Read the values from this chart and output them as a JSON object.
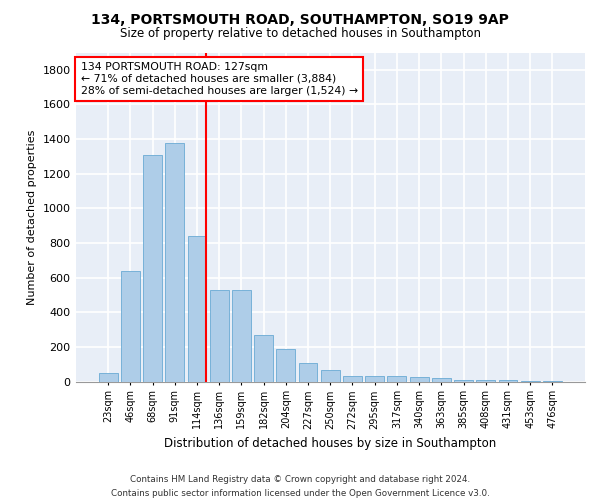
{
  "title1": "134, PORTSMOUTH ROAD, SOUTHAMPTON, SO19 9AP",
  "title2": "Size of property relative to detached houses in Southampton",
  "xlabel": "Distribution of detached houses by size in Southampton",
  "ylabel": "Number of detached properties",
  "categories": [
    "23sqm",
    "46sqm",
    "68sqm",
    "91sqm",
    "114sqm",
    "136sqm",
    "159sqm",
    "182sqm",
    "204sqm",
    "227sqm",
    "250sqm",
    "272sqm",
    "295sqm",
    "317sqm",
    "340sqm",
    "363sqm",
    "385sqm",
    "408sqm",
    "431sqm",
    "453sqm",
    "476sqm"
  ],
  "values": [
    50,
    640,
    1310,
    1380,
    840,
    530,
    530,
    270,
    185,
    105,
    65,
    30,
    32,
    30,
    25,
    18,
    10,
    8,
    6,
    4,
    4
  ],
  "bar_color": "#aecde8",
  "bar_edge_color": "#6aaad4",
  "vline_color": "red",
  "vline_x_index": 4,
  "annotation_text": "134 PORTSMOUTH ROAD: 127sqm\n← 71% of detached houses are smaller (3,884)\n28% of semi-detached houses are larger (1,524) →",
  "annotation_box_facecolor": "white",
  "annotation_box_edgecolor": "red",
  "ylim": [
    0,
    1900
  ],
  "yticks": [
    0,
    200,
    400,
    600,
    800,
    1000,
    1200,
    1400,
    1600,
    1800
  ],
  "footnote": "Contains HM Land Registry data © Crown copyright and database right 2024.\nContains public sector information licensed under the Open Government Licence v3.0.",
  "bg_color": "#ffffff",
  "plot_bg_color": "#e8eef7",
  "grid_color": "#ffffff",
  "spine_color": "#999999"
}
